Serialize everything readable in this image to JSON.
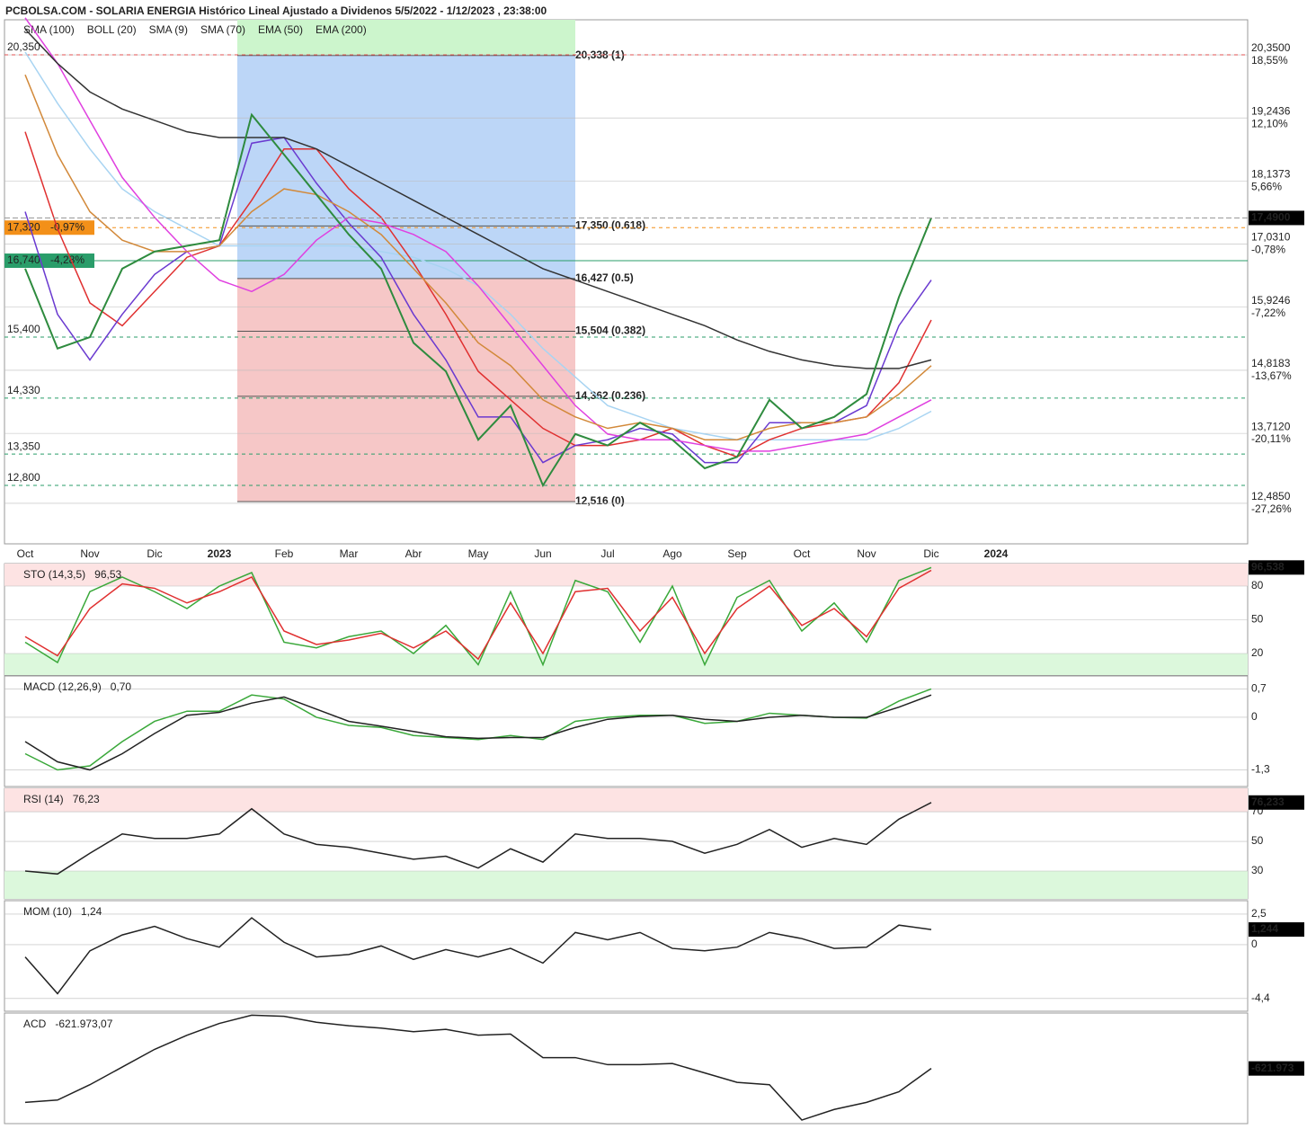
{
  "chart_data": [
    {
      "type": "line",
      "title": "PCBOLSA.COM - SOLARIA ENERGIA Histórico Lineal Ajustado a Dividenos 5/5/2022 - 1/12/2023 , 23:38:00",
      "categories": [
        "Oct",
        null,
        "Nov",
        null,
        "Dic",
        null,
        "2023",
        null,
        "Feb",
        null,
        "Mar",
        null,
        "Abr",
        null,
        "May",
        null,
        "Jun",
        null,
        "Jul",
        null,
        "Ago",
        null,
        "Sep",
        null,
        "Oct",
        null,
        "Nov",
        null,
        "Dic",
        null,
        "2024"
      ],
      "values": [
        16.6,
        15.2,
        15.4,
        16.6,
        16.9,
        17.0,
        17.1,
        19.3,
        18.6,
        17.9,
        17.2,
        16.6,
        15.3,
        14.8,
        13.6,
        14.2,
        12.8,
        13.7,
        13.5,
        13.9,
        13.6,
        13.1,
        13.3,
        14.3,
        13.8,
        14.0,
        14.4,
        16.1,
        17.49,
        null,
        null
      ],
      "color": "#2e8b3e",
      "series": [
        {
          "name": "SMA (100)",
          "color": "#a8d4f2",
          "values": [
            20.4,
            19.5,
            18.7,
            18.0,
            17.6,
            17.3,
            17.0,
            17.0,
            17.0,
            17.0,
            17.0,
            16.9,
            16.8,
            16.6,
            16.3,
            15.8,
            15.2,
            14.7,
            14.2,
            14.0,
            13.8,
            13.7,
            13.6,
            13.6,
            13.6,
            13.6,
            13.6,
            13.8,
            14.1,
            null,
            null
          ]
        },
        {
          "name": "BOLL (20)",
          "color": "#e03030",
          "values": [
            19.0,
            17.3,
            16.0,
            15.6,
            16.2,
            16.8,
            17.0,
            17.8,
            18.7,
            18.7,
            18.0,
            17.5,
            16.7,
            15.8,
            14.8,
            14.3,
            13.8,
            13.5,
            13.5,
            13.6,
            13.8,
            13.5,
            13.3,
            13.6,
            13.8,
            13.9,
            14.0,
            14.6,
            15.7,
            null,
            null
          ]
        },
        {
          "name": "SMA (9)",
          "color": "#6a3ad0",
          "values": [
            17.6,
            15.8,
            15.0,
            15.8,
            16.5,
            16.9,
            17.0,
            18.8,
            18.9,
            18.1,
            17.4,
            16.8,
            15.8,
            15.0,
            14.0,
            14.0,
            13.2,
            13.5,
            13.6,
            13.8,
            13.7,
            13.2,
            13.2,
            13.9,
            13.9,
            13.9,
            14.2,
            15.6,
            16.4,
            null,
            null
          ]
        },
        {
          "name": "SMA (70)",
          "color": "#e040e0",
          "values": [
            21.0,
            20.2,
            19.2,
            18.2,
            17.5,
            16.9,
            16.4,
            16.2,
            16.5,
            17.1,
            17.5,
            17.4,
            17.2,
            16.9,
            16.3,
            15.6,
            14.9,
            14.2,
            13.7,
            13.6,
            13.6,
            13.5,
            13.4,
            13.4,
            13.5,
            13.6,
            13.7,
            14.0,
            14.3,
            null,
            null
          ]
        },
        {
          "name": "EMA (50)",
          "color": "#d2893a",
          "values": [
            20.0,
            18.6,
            17.6,
            17.1,
            16.9,
            16.9,
            17.0,
            17.6,
            18.0,
            17.9,
            17.6,
            17.2,
            16.6,
            16.0,
            15.3,
            14.9,
            14.3,
            14.0,
            13.8,
            13.9,
            13.8,
            13.6,
            13.6,
            13.8,
            13.9,
            13.9,
            14.0,
            14.4,
            14.9,
            null,
            null
          ]
        },
        {
          "name": "EMA (200)",
          "color": "#333333",
          "values": [
            20.8,
            20.2,
            19.7,
            19.4,
            19.2,
            19.0,
            18.9,
            18.9,
            18.9,
            18.7,
            18.4,
            18.1,
            17.8,
            17.5,
            17.2,
            16.9,
            16.6,
            16.4,
            16.2,
            16.0,
            15.8,
            15.6,
            15.35,
            15.15,
            15.0,
            14.9,
            14.85,
            14.85,
            15.0,
            null,
            null
          ]
        }
      ],
      "ylim": [
        11.775,
        20.965
      ],
      "yticks": [
        {
          "value": 20.35,
          "label": "20,3500"
        },
        {
          "value": 19.2436,
          "label": "19,2436"
        },
        {
          "value": 18.1373,
          "label": "18,1373"
        },
        {
          "value": 17.031,
          "label": "17,0310"
        },
        {
          "value": 15.9246,
          "label": "15,9246"
        },
        {
          "value": 14.8183,
          "label": "14,8183"
        },
        {
          "value": 13.712,
          "label": "13,7120"
        },
        {
          "value": 12.485,
          "label": "12,4850"
        }
      ],
      "y2lim": [
        -31.41,
        22.13
      ],
      "y2ticks": [
        {
          "value": 18.55,
          "label": "18,55%"
        },
        {
          "value": 12.1,
          "label": "12,10%"
        },
        {
          "value": 5.66,
          "label": "5,66%"
        },
        {
          "value": -0.78,
          "label": "-0,78%"
        },
        {
          "value": -7.22,
          "label": "-7,22%"
        },
        {
          "value": -13.67,
          "label": "-13,67%"
        },
        {
          "value": -20.11,
          "label": "-20,11%"
        },
        {
          "value": -27.26,
          "label": "-27,26%"
        }
      ],
      "last_badge": {
        "value": 17.49,
        "label": "17,4900"
      },
      "levels": [
        {
          "value": 20.35,
          "label": "20,350",
          "color": "#e05050",
          "style": "dashed"
        },
        {
          "value": 17.32,
          "label": "17,320",
          "change": "-0,97%",
          "color": "#f39019",
          "style": "dashed"
        },
        {
          "value": 16.74,
          "label": "16,740",
          "change": "-4,28%",
          "color": "#2a9d6a",
          "style": "solid"
        },
        {
          "value": 15.4,
          "label": "15,400",
          "color": "#2a9d6a",
          "style": "dashed"
        },
        {
          "value": 14.33,
          "label": "14,330",
          "color": "#2a9d6a",
          "style": "dashed"
        },
        {
          "value": 13.35,
          "label": "13,350",
          "color": "#2a9d6a",
          "style": "dashed"
        },
        {
          "value": 12.8,
          "label": "12,800",
          "color": "#2a9d6a",
          "style": "dashed"
        }
      ],
      "fib": [
        {
          "value": 20.338,
          "label": "20,338 (1)",
          "color": "#5cc85c"
        },
        {
          "value": 17.35,
          "label": "17,350 (0.618)",
          "color": "#5a9ae0"
        },
        {
          "value": 16.427,
          "label": "16,427 (0.5)",
          "color": "#5a9ae0"
        },
        {
          "value": 15.504,
          "label": "15,504 (0.382)",
          "color": "#f0a0a0"
        },
        {
          "value": 14.362,
          "label": "14,362 (0.236)",
          "color": "#f0a0a0"
        },
        {
          "value": 12.516,
          "label": "12,516 (0)",
          "color": "#f0a0a0"
        }
      ]
    },
    {
      "type": "line",
      "title": "STO (14,3,5)",
      "last": {
        "value": 96.53,
        "label": "96,53"
      },
      "series": [
        {
          "color": "#3aa83a",
          "values": [
            30,
            12,
            75,
            88,
            75,
            60,
            80,
            92,
            30,
            25,
            35,
            40,
            20,
            45,
            10,
            75,
            10,
            85,
            75,
            30,
            80,
            10,
            70,
            85,
            40,
            65,
            30,
            85,
            96.5,
            null,
            null
          ]
        },
        {
          "color": "#e03030",
          "values": [
            35,
            18,
            60,
            82,
            78,
            65,
            75,
            88,
            40,
            28,
            32,
            38,
            25,
            40,
            15,
            65,
            20,
            75,
            78,
            40,
            70,
            20,
            60,
            80,
            45,
            60,
            35,
            78,
            94,
            null,
            null
          ]
        }
      ],
      "ylim": [
        0.8,
        100
      ],
      "yticks": [
        80,
        50,
        20
      ],
      "overbought": 80,
      "oversold": 20,
      "last_badge": {
        "value": 96.538,
        "label": "96,538"
      }
    },
    {
      "type": "line",
      "title": "MACD (12,26,9)",
      "last": {
        "value": 0.7,
        "label": "0,70"
      },
      "series": [
        {
          "color": "#3aa83a",
          "values": [
            -0.9,
            -1.3,
            -1.2,
            -0.6,
            -0.1,
            0.15,
            0.15,
            0.55,
            0.45,
            0.0,
            -0.2,
            -0.25,
            -0.45,
            -0.5,
            -0.55,
            -0.45,
            -0.55,
            -0.1,
            0.0,
            0.05,
            0.05,
            -0.15,
            -0.1,
            0.1,
            0.05,
            0.0,
            -0.02,
            0.4,
            0.7,
            null,
            null
          ]
        },
        {
          "color": "#222222",
          "values": [
            -0.6,
            -1.1,
            -1.3,
            -0.9,
            -0.4,
            0.05,
            0.12,
            0.35,
            0.5,
            0.2,
            -0.1,
            -0.22,
            -0.35,
            -0.48,
            -0.52,
            -0.5,
            -0.5,
            -0.25,
            -0.05,
            0.02,
            0.05,
            -0.05,
            -0.1,
            0.0,
            0.05,
            0.0,
            0.0,
            0.25,
            0.55,
            null,
            null
          ]
        }
      ],
      "ylim": [
        -1.71,
        1.02
      ],
      "yticks": [
        {
          "value": 0.7,
          "label": "0,7"
        },
        0,
        {
          "value": -1.3,
          "label": "-1,3"
        }
      ]
    },
    {
      "type": "line",
      "title": "RSI (14)",
      "last": {
        "value": 76.23,
        "label": "76,23"
      },
      "series": [
        {
          "color": "#222222",
          "values": [
            30,
            28,
            42,
            55,
            52,
            52,
            55,
            72,
            55,
            48,
            46,
            42,
            38,
            40,
            32,
            45,
            36,
            55,
            52,
            52,
            50,
            42,
            48,
            58,
            46,
            52,
            48,
            65,
            76.2,
            null,
            null
          ]
        }
      ],
      "ylim": [
        11.2,
        85.8
      ],
      "yticks": [
        70,
        50,
        30
      ],
      "overbought": 70,
      "oversold": 30,
      "last_badge": {
        "value": 76.233,
        "label": "76,233"
      }
    },
    {
      "type": "line",
      "title": "MOM (10)",
      "last": {
        "value": 1.24,
        "label": "1,24"
      },
      "series": [
        {
          "color": "#222222",
          "values": [
            -1,
            -4.0,
            -0.5,
            0.8,
            1.5,
            0.5,
            -0.2,
            2.2,
            0.2,
            -1.0,
            -0.8,
            -0.1,
            -1.2,
            -0.4,
            -1.0,
            -0.3,
            -1.5,
            1.0,
            0.4,
            1.0,
            -0.3,
            -0.5,
            -0.2,
            1.0,
            0.5,
            -0.3,
            -0.2,
            1.6,
            1.24,
            null,
            null
          ]
        }
      ],
      "ylim": [
        -5.44,
        3.6
      ],
      "yticks": [
        {
          "value": 2.5,
          "label": "2,5"
        },
        0,
        {
          "value": -4.4,
          "label": "-4,4"
        }
      ],
      "last_badge": {
        "value": 1.244,
        "label": "1,244"
      }
    },
    {
      "type": "line",
      "title": "ACD",
      "last": {
        "value": -621973.07,
        "label": "-621.973,07"
      },
      "series": [
        {
          "color": "#222222",
          "values": [
            -3500000,
            -3300000,
            -2000000,
            -500000,
            1000000,
            2200000,
            3200000,
            3900000,
            3800000,
            3300000,
            3000000,
            2800000,
            2500000,
            2700000,
            2200000,
            2300000,
            300000,
            300000,
            -300000,
            -300000,
            -200000,
            -1000000,
            -1800000,
            -2000000,
            -5000000,
            -4100000,
            -3500000,
            -2600000,
            -621973.07,
            null,
            null
          ]
        }
      ],
      "ylim": [
        -5300000,
        4080000
      ],
      "last_badge": {
        "value": -621973,
        "label": "-621.973"
      }
    }
  ]
}
